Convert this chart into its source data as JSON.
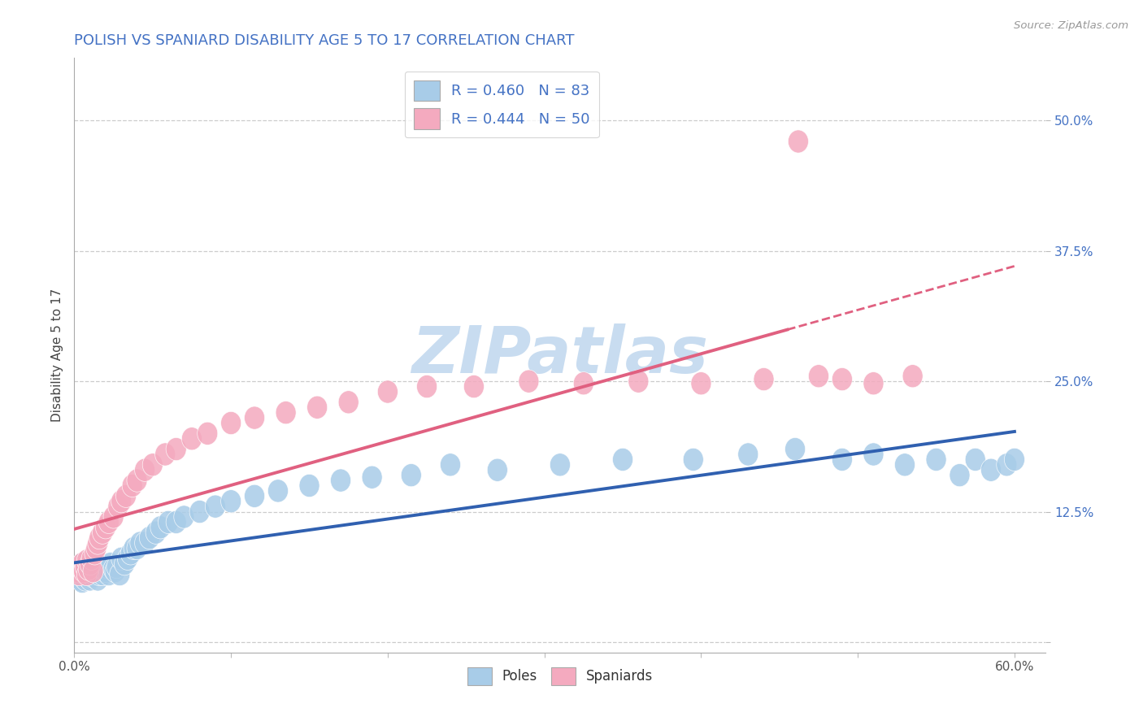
{
  "title": "POLISH VS SPANIARD DISABILITY AGE 5 TO 17 CORRELATION CHART",
  "source": "Source: ZipAtlas.com",
  "ylabel": "Disability Age 5 to 17",
  "xlim": [
    0.0,
    0.62
  ],
  "ylim": [
    -0.01,
    0.56
  ],
  "plot_xlim": [
    0.0,
    0.6
  ],
  "x_ticks": [
    0.0,
    0.1,
    0.2,
    0.3,
    0.4,
    0.5,
    0.6
  ],
  "x_tick_labels": [
    "0.0%",
    "",
    "",
    "",
    "",
    "",
    "60.0%"
  ],
  "y_ticks": [
    0.0,
    0.125,
    0.25,
    0.375,
    0.5
  ],
  "y_tick_labels": [
    "",
    "12.5%",
    "25.0%",
    "37.5%",
    "50.0%"
  ],
  "legend_blue_label": "R = 0.460   N = 83",
  "legend_pink_label": "R = 0.444   N = 50",
  "legend_bottom_poles": "Poles",
  "legend_bottom_spaniards": "Spaniards",
  "blue_scatter_color": "#A8CCE8",
  "pink_scatter_color": "#F4AABF",
  "blue_line_color": "#3060B0",
  "pink_line_color": "#E06080",
  "title_color": "#4472C4",
  "source_color": "#999999",
  "grid_color": "#CCCCCC",
  "watermark_color": "#C8DCF0",
  "poles_x": [
    0.002,
    0.003,
    0.003,
    0.004,
    0.004,
    0.005,
    0.005,
    0.005,
    0.006,
    0.006,
    0.006,
    0.007,
    0.007,
    0.007,
    0.008,
    0.008,
    0.008,
    0.009,
    0.009,
    0.01,
    0.01,
    0.01,
    0.011,
    0.011,
    0.012,
    0.012,
    0.013,
    0.013,
    0.014,
    0.015,
    0.015,
    0.016,
    0.016,
    0.017,
    0.018,
    0.019,
    0.02,
    0.021,
    0.022,
    0.023,
    0.025,
    0.026,
    0.027,
    0.029,
    0.03,
    0.032,
    0.034,
    0.036,
    0.038,
    0.04,
    0.042,
    0.045,
    0.048,
    0.052,
    0.055,
    0.06,
    0.065,
    0.07,
    0.08,
    0.09,
    0.1,
    0.115,
    0.13,
    0.15,
    0.17,
    0.19,
    0.215,
    0.24,
    0.27,
    0.31,
    0.35,
    0.395,
    0.43,
    0.46,
    0.49,
    0.51,
    0.53,
    0.55,
    0.565,
    0.575,
    0.585,
    0.595,
    0.6
  ],
  "poles_y": [
    0.065,
    0.07,
    0.068,
    0.072,
    0.06,
    0.065,
    0.075,
    0.058,
    0.062,
    0.07,
    0.068,
    0.065,
    0.072,
    0.06,
    0.068,
    0.075,
    0.063,
    0.07,
    0.065,
    0.068,
    0.072,
    0.06,
    0.065,
    0.07,
    0.068,
    0.063,
    0.072,
    0.065,
    0.068,
    0.07,
    0.06,
    0.065,
    0.072,
    0.068,
    0.065,
    0.07,
    0.068,
    0.072,
    0.065,
    0.075,
    0.07,
    0.068,
    0.072,
    0.065,
    0.08,
    0.075,
    0.08,
    0.085,
    0.09,
    0.09,
    0.095,
    0.095,
    0.1,
    0.105,
    0.11,
    0.115,
    0.115,
    0.12,
    0.125,
    0.13,
    0.135,
    0.14,
    0.145,
    0.15,
    0.155,
    0.158,
    0.16,
    0.17,
    0.165,
    0.17,
    0.175,
    0.175,
    0.18,
    0.185,
    0.175,
    0.18,
    0.17,
    0.175,
    0.16,
    0.175,
    0.165,
    0.17,
    0.175
  ],
  "spaniards_x": [
    0.002,
    0.003,
    0.004,
    0.005,
    0.006,
    0.006,
    0.007,
    0.008,
    0.008,
    0.009,
    0.01,
    0.011,
    0.012,
    0.013,
    0.014,
    0.015,
    0.016,
    0.018,
    0.02,
    0.022,
    0.025,
    0.028,
    0.03,
    0.033,
    0.037,
    0.04,
    0.045,
    0.05,
    0.058,
    0.065,
    0.075,
    0.085,
    0.1,
    0.115,
    0.135,
    0.155,
    0.175,
    0.2,
    0.225,
    0.255,
    0.29,
    0.325,
    0.36,
    0.4,
    0.44,
    0.462,
    0.475,
    0.49,
    0.51,
    0.535
  ],
  "spaniards_y": [
    0.068,
    0.065,
    0.072,
    0.075,
    0.07,
    0.068,
    0.072,
    0.065,
    0.078,
    0.07,
    0.075,
    0.08,
    0.068,
    0.085,
    0.09,
    0.095,
    0.1,
    0.105,
    0.11,
    0.115,
    0.12,
    0.13,
    0.135,
    0.14,
    0.15,
    0.155,
    0.165,
    0.17,
    0.18,
    0.185,
    0.195,
    0.2,
    0.21,
    0.215,
    0.22,
    0.225,
    0.23,
    0.24,
    0.245,
    0.245,
    0.25,
    0.248,
    0.25,
    0.248,
    0.252,
    0.48,
    0.255,
    0.252,
    0.248,
    0.255
  ]
}
